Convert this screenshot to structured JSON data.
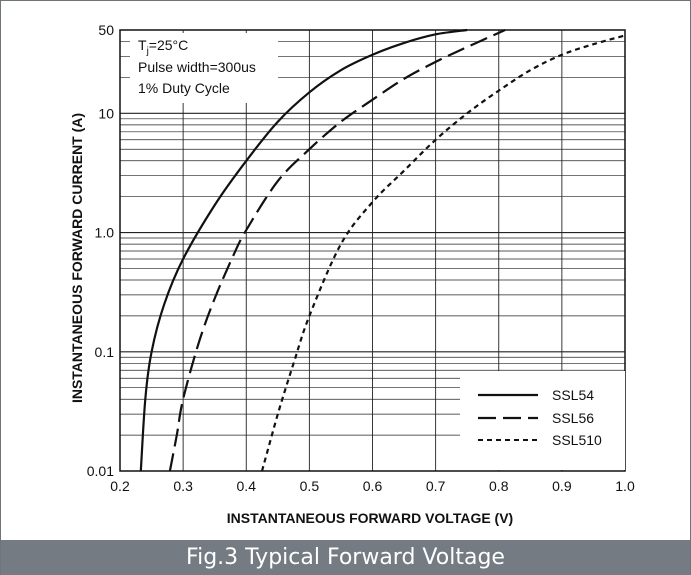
{
  "chart_data": {
    "type": "line",
    "xlabel": "INSTANTANEOUS FORWARD VOLTAGE (V)",
    "ylabel": "INSTANTANEOUS FORWARD CURRENT (A)",
    "xlim": [
      0.2,
      1.0
    ],
    "ylim": [
      0.01,
      50
    ],
    "y_scale": "log",
    "grid": true,
    "x_ticks": [
      "0.2",
      "0.3",
      "0.4",
      "0.5",
      "0.6",
      "0.7",
      "0.8",
      "0.9",
      "1.0"
    ],
    "y_ticks": [
      "0.01",
      "0.1",
      "1.0",
      "10",
      "50"
    ],
    "annotation": {
      "line1_prefix": "T",
      "line1_sub": "j",
      "line1_rest": "=25°C",
      "line2": "Pulse width=300us",
      "line3": "1% Duty Cycle"
    },
    "legend_position": "bottom-right",
    "series": [
      {
        "name": "SSL54",
        "style": "solid",
        "x": [
          0.233,
          0.24,
          0.25,
          0.27,
          0.3,
          0.35,
          0.4,
          0.45,
          0.5,
          0.55,
          0.6,
          0.65,
          0.7,
          0.75
        ],
        "y": [
          0.01,
          0.04,
          0.1,
          0.25,
          0.6,
          1.7,
          4.0,
          8.5,
          15,
          23,
          31,
          39,
          46,
          50
        ]
      },
      {
        "name": "SSL56",
        "style": "dashed",
        "x": [
          0.279,
          0.29,
          0.3,
          0.325,
          0.35,
          0.38,
          0.4,
          0.45,
          0.5,
          0.55,
          0.6,
          0.65,
          0.7,
          0.75,
          0.81
        ],
        "y": [
          0.01,
          0.02,
          0.04,
          0.12,
          0.28,
          0.65,
          1.05,
          2.7,
          5.0,
          8.5,
          13,
          19.5,
          27,
          36,
          50
        ]
      },
      {
        "name": "SSL510",
        "style": "dotted",
        "x": [
          0.425,
          0.45,
          0.475,
          0.5,
          0.55,
          0.6,
          0.65,
          0.7,
          0.75,
          0.8,
          0.85,
          0.9,
          0.95,
          1.0
        ],
        "y": [
          0.01,
          0.03,
          0.08,
          0.2,
          0.8,
          1.8,
          3.3,
          6.0,
          10,
          15.5,
          23,
          31,
          38,
          45
        ]
      }
    ]
  },
  "caption": "Fig.3 Typical Forward Voltage"
}
